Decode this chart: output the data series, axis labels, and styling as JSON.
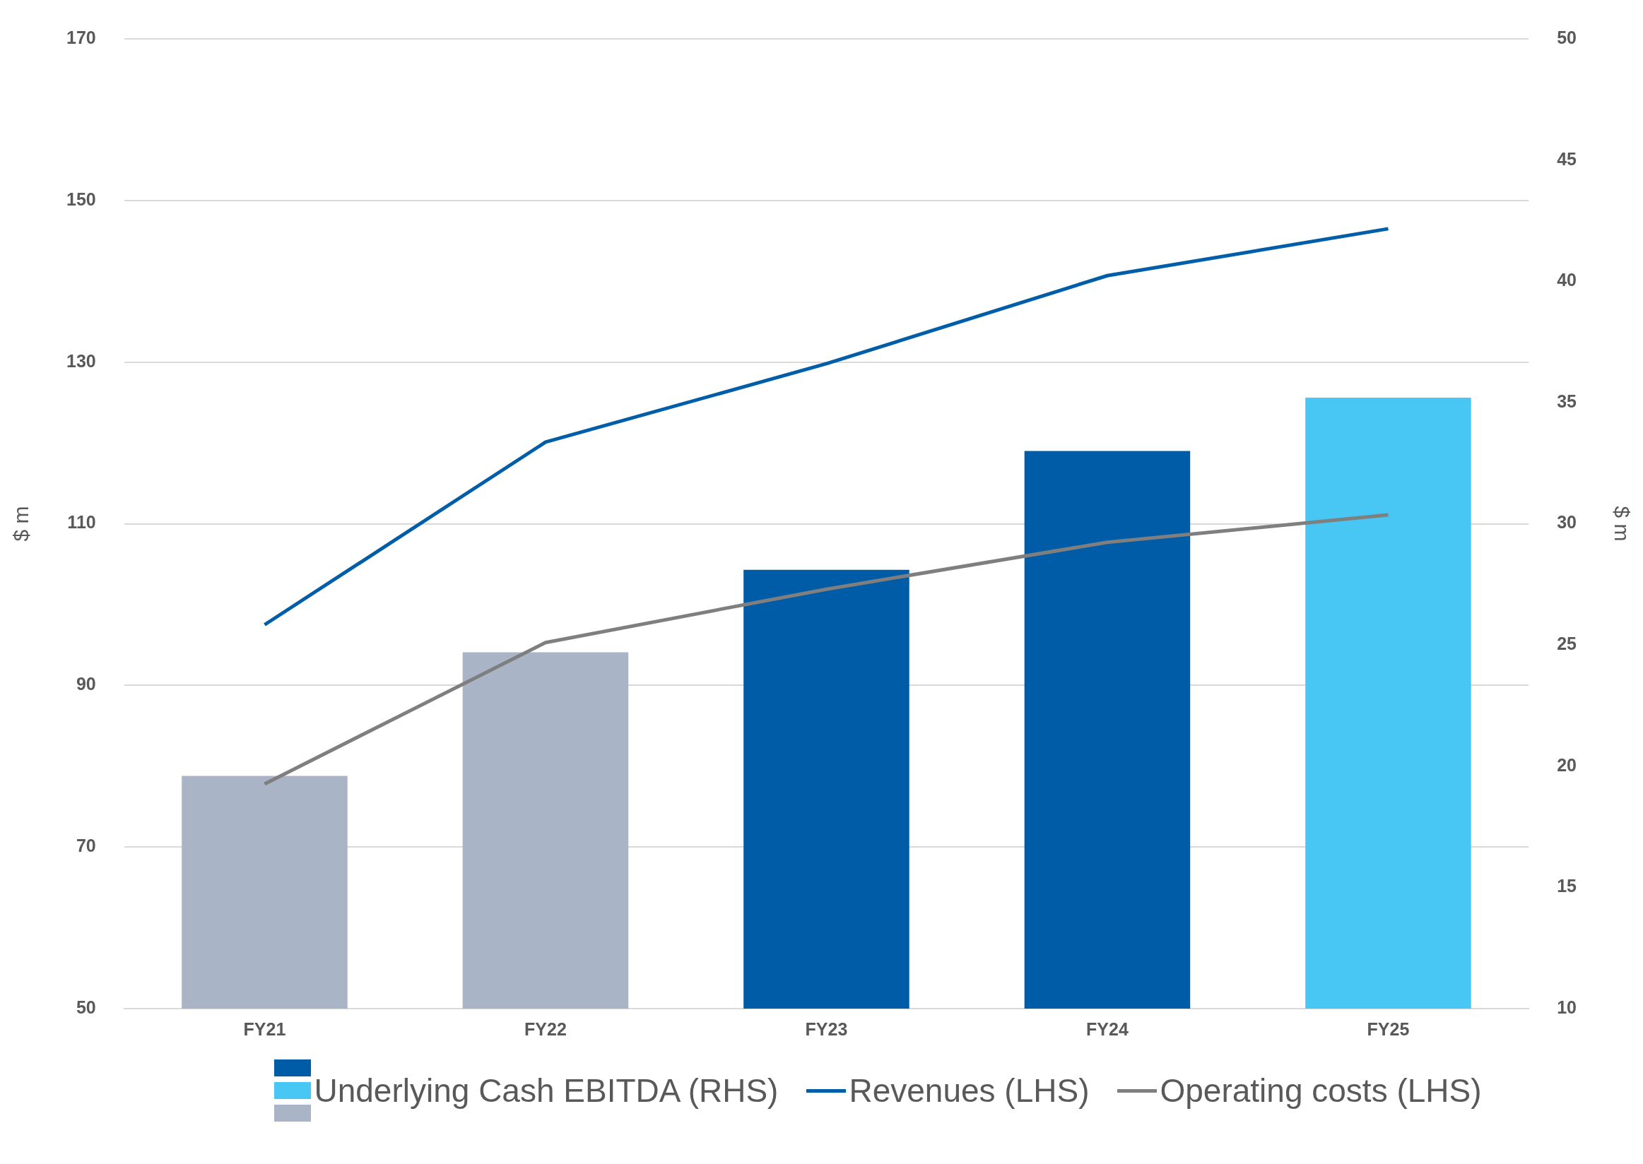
{
  "chart_data": {
    "type": "bar",
    "categories": [
      "FY21",
      "FY22",
      "FY23",
      "FY24",
      "FY25"
    ],
    "ylabel": "$ m",
    "y2label": "$ m",
    "ylim": [
      50,
      170
    ],
    "yticks": [
      50,
      70,
      90,
      110,
      130,
      150,
      170
    ],
    "y2lim": [
      10,
      50
    ],
    "y2ticks": [
      10,
      15,
      20,
      25,
      30,
      35,
      40,
      45,
      50
    ],
    "grid": "y",
    "legend": "bottom",
    "series": [
      {
        "name": "Underlying Cash EBITDA (RHS)",
        "axis": "y2",
        "colors": [
          "#a9b4c6",
          "#a9b4c6",
          "#005ca6",
          "#005ca6",
          "#48c7f4"
        ],
        "values": [
          19.6,
          24.7,
          28.1,
          33.0,
          35.2
        ]
      },
      {
        "name": "Revenues (LHS)",
        "type": "line",
        "color": "#005ea8",
        "values": [
          97.5,
          120.1,
          129.8,
          140.7,
          146.5
        ]
      },
      {
        "name": "Operating costs (LHS)",
        "type": "line",
        "color": "#7f7f7f",
        "values": [
          77.8,
          95.3,
          101.9,
          107.7,
          111.1
        ]
      }
    ]
  }
}
